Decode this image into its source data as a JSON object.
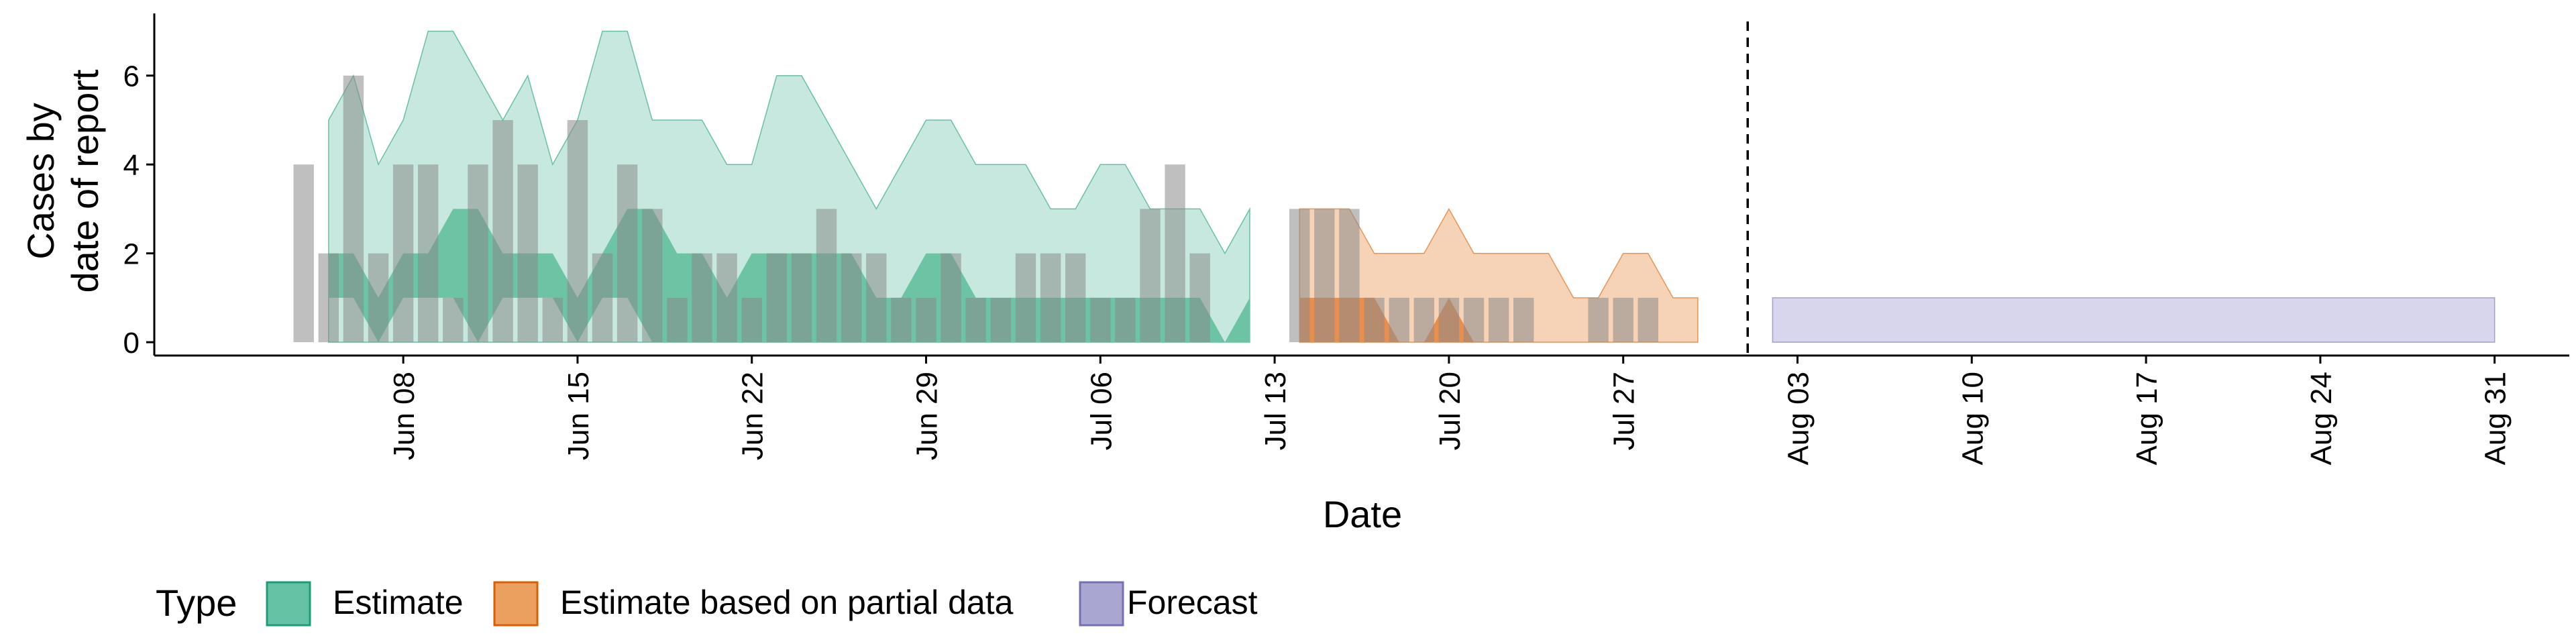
{
  "chart_data": {
    "type": "area",
    "xlabel": "Date",
    "ylabel_lines": [
      "Cases by",
      "date of report"
    ],
    "x_tick_labels": [
      "Jun 08",
      "Jun 15",
      "Jun 22",
      "Jun 29",
      "Jul 06",
      "Jul 13",
      "Jul 20",
      "Jul 27",
      "Aug 03",
      "Aug 10",
      "Aug 17",
      "Aug 24",
      "Aug 31"
    ],
    "x_ticks": [
      "2020-06-08",
      "2020-06-15",
      "2020-06-22",
      "2020-06-29",
      "2020-07-06",
      "2020-07-13",
      "2020-07-20",
      "2020-07-27",
      "2020-08-03",
      "2020-08-10",
      "2020-08-17",
      "2020-08-24",
      "2020-08-31"
    ],
    "xlim": [
      "2020-05-29",
      "2020-09-03"
    ],
    "y_ticks": [
      0,
      2,
      4,
      6
    ],
    "ylim": [
      -0.3,
      7.4
    ],
    "vline_date": "2020-08-01",
    "grid": false,
    "legend": {
      "title": "Type",
      "position": "bottom",
      "entries": [
        {
          "label": "Estimate",
          "fill": "#66c2a5",
          "stroke": "#1b9e77"
        },
        {
          "label": "Estimate based on partial data",
          "fill": "#eba060",
          "stroke": "#d95f02"
        },
        {
          "label": "Forecast",
          "fill": "#a9a6d2",
          "stroke": "#7570b3"
        }
      ]
    },
    "series": [
      {
        "name": "Estimate",
        "start_date": "2020-06-05",
        "color": "#1b9e77",
        "outer_fill": "#c6e8de",
        "inner_fill": "#6cc4a4",
        "outer_upper": [
          5,
          6,
          4,
          5,
          7,
          7,
          6,
          5,
          6,
          4,
          5,
          7,
          7,
          5,
          5,
          5,
          4,
          4,
          6,
          6,
          5,
          4,
          3,
          4,
          5,
          5,
          4,
          4,
          4,
          3,
          3,
          4,
          4,
          3,
          3,
          3,
          2,
          3
        ],
        "outer_lower": [
          0,
          0,
          0,
          0,
          0,
          0,
          0,
          0,
          0,
          0,
          0,
          0,
          0,
          0,
          0,
          0,
          0,
          0,
          0,
          0,
          0,
          0,
          0,
          0,
          0,
          0,
          0,
          0,
          0,
          0,
          0,
          0,
          0,
          0,
          0,
          0,
          0,
          0
        ],
        "inner_upper": [
          2,
          2,
          1,
          2,
          2,
          3,
          3,
          2,
          2,
          2,
          1,
          2,
          3,
          3,
          2,
          2,
          1,
          2,
          2,
          2,
          2,
          2,
          1,
          1,
          2,
          2,
          1,
          1,
          1,
          1,
          1,
          1,
          1,
          1,
          1,
          1,
          0,
          1
        ],
        "inner_lower": [
          1,
          1,
          0,
          1,
          1,
          1,
          0,
          1,
          1,
          1,
          0,
          1,
          1,
          0,
          0,
          0,
          0,
          0,
          0,
          0,
          0,
          0,
          0,
          0,
          0,
          0,
          0,
          0,
          0,
          0,
          0,
          0,
          0,
          0,
          0,
          0,
          0,
          0
        ]
      },
      {
        "name": "Estimate based on partial data",
        "start_date": "2020-07-14",
        "color": "#d95f02",
        "outer_fill": "#f6d3b6",
        "inner_fill": "#e88f4e",
        "outer_upper": [
          3,
          3,
          3,
          2,
          2,
          2,
          3,
          2,
          2,
          2,
          2,
          1,
          1,
          2,
          2,
          1,
          1
        ],
        "outer_lower": [
          0,
          0,
          0,
          0,
          0,
          0,
          0,
          0,
          0,
          0,
          0,
          0,
          0,
          0,
          0,
          0,
          0
        ],
        "inner_upper": [
          1,
          1,
          1,
          1,
          0,
          0,
          1,
          0,
          0,
          0,
          0,
          0,
          0,
          0,
          0,
          0,
          0
        ],
        "inner_lower": [
          0,
          0,
          0,
          0,
          0,
          0,
          0,
          0,
          0,
          0,
          0,
          0,
          0,
          0,
          0,
          0,
          0
        ]
      },
      {
        "name": "Forecast",
        "start_date": "2020-08-02",
        "color": "#7570b3",
        "outer_fill": "#d8d6ec",
        "outer_upper": [
          1,
          1,
          1,
          1,
          1,
          1,
          1,
          1,
          1,
          1,
          1,
          1,
          1,
          1,
          1,
          1,
          1,
          1,
          1,
          1,
          1,
          1,
          1,
          1,
          1,
          1,
          1,
          1,
          1,
          1
        ],
        "outer_lower": [
          0,
          0,
          0,
          0,
          0,
          0,
          0,
          0,
          0,
          0,
          0,
          0,
          0,
          0,
          0,
          0,
          0,
          0,
          0,
          0,
          0,
          0,
          0,
          0,
          0,
          0,
          0,
          0,
          0,
          0
        ]
      }
    ],
    "observed_cases": {
      "start_date": "2020-06-04",
      "color": "#8a8a8a",
      "values": [
        4,
        2,
        6,
        2,
        4,
        4,
        1,
        4,
        5,
        4,
        1,
        5,
        2,
        4,
        3,
        1,
        2,
        2,
        1,
        2,
        2,
        3,
        2,
        2,
        1,
        1,
        2,
        1,
        1,
        2,
        2,
        2,
        1,
        1,
        3,
        4,
        2,
        0,
        0,
        0,
        3,
        3,
        3,
        1,
        1,
        1,
        1,
        1,
        1,
        1,
        0,
        0,
        1,
        1,
        1,
        0,
        0
      ]
    }
  }
}
